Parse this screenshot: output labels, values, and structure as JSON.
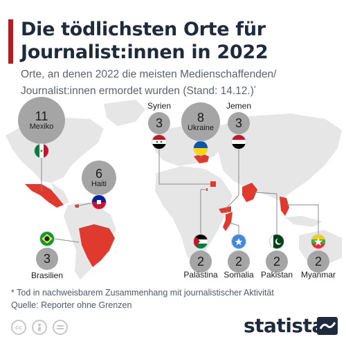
{
  "header": {
    "title_line1": "Die tödlichsten Orte für",
    "title_line2": "Journalist:innen in 2022",
    "subtitle_line1": "Orte, an denen 2022 die meisten Medienschaffenden/",
    "subtitle_line2": "Journalist:innen ermordet wurden (Stand: 14.12.)",
    "subtitle_mark": "*"
  },
  "chart_data": {
    "type": "map",
    "series": [
      {
        "country": "Mexiko",
        "value": 11
      },
      {
        "country": "Haiti",
        "value": 6
      },
      {
        "country": "Ukraine",
        "value": 8
      },
      {
        "country": "Syrien",
        "value": 3
      },
      {
        "country": "Jemen",
        "value": 3
      },
      {
        "country": "Brasilien",
        "value": 3
      },
      {
        "country": "Palästina",
        "value": 2
      },
      {
        "country": "Somalia",
        "value": 2
      },
      {
        "country": "Pakistan",
        "value": 2
      },
      {
        "country": "Myanmar",
        "value": 2
      }
    ]
  },
  "footer": {
    "footnote": "* Tod in nachweisbarem Zusammenhang mit journalistischer Aktivität",
    "source": "Quelle: Reporter ohne Grenzen",
    "brand": "statista",
    "license_icons": [
      "cc",
      "by",
      "nd"
    ]
  },
  "colors": {
    "accent": "#b01f24",
    "highlight": "#e03a2e",
    "land": "#e6e6e6",
    "bubble": "#a5a5a5",
    "title": "#1d2b3c",
    "subtitle": "#5a6470"
  }
}
